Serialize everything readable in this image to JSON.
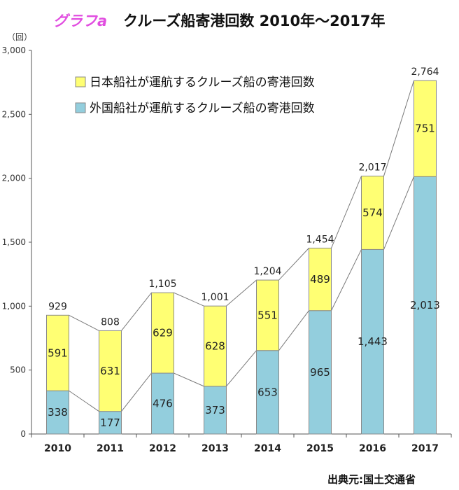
{
  "title": {
    "label": "グラフa",
    "text": "クルーズ船寄港回数 2010年～2017年"
  },
  "source": "出典元:国土交通省",
  "colors": {
    "domestic": "#ffff73",
    "foreign": "#93cedd",
    "outline": "#8a8a8a",
    "connector": "#7a7a7a"
  },
  "chart_data": {
    "type": "bar",
    "stacked": true,
    "yunit": "（回）",
    "ylim": [
      0,
      3000
    ],
    "yticks": [
      0,
      500,
      1000,
      1500,
      2000,
      2500,
      3000
    ],
    "ytick_labels": [
      "0",
      "500",
      "1,000",
      "1,500",
      "2,000",
      "2,500",
      "3,000"
    ],
    "categories": [
      "2010",
      "2011",
      "2012",
      "2013",
      "2014",
      "2015",
      "2016",
      "2017"
    ],
    "series": [
      {
        "name": "外国船社が運航するクルーズ船の寄港回数",
        "values": [
          338,
          177,
          476,
          373,
          653,
          965,
          1443,
          2013
        ]
      },
      {
        "name": "日本船社が運航するクルーズ船の寄港回数",
        "values": [
          591,
          631,
          629,
          628,
          551,
          489,
          574,
          751
        ]
      }
    ],
    "series_labels": [
      [
        "338",
        "177",
        "476",
        "373",
        "653",
        "965",
        "1,443",
        "2,013"
      ],
      [
        "591",
        "631",
        "629",
        "628",
        "551",
        "489",
        "574",
        "751"
      ]
    ],
    "totals": [
      "929",
      "808",
      "1,105",
      "1,001",
      "1,204",
      "1,454",
      "2,017",
      "2,764"
    ],
    "legend_order": [
      1,
      0
    ],
    "legend_position": "top-left",
    "grid": false
  }
}
